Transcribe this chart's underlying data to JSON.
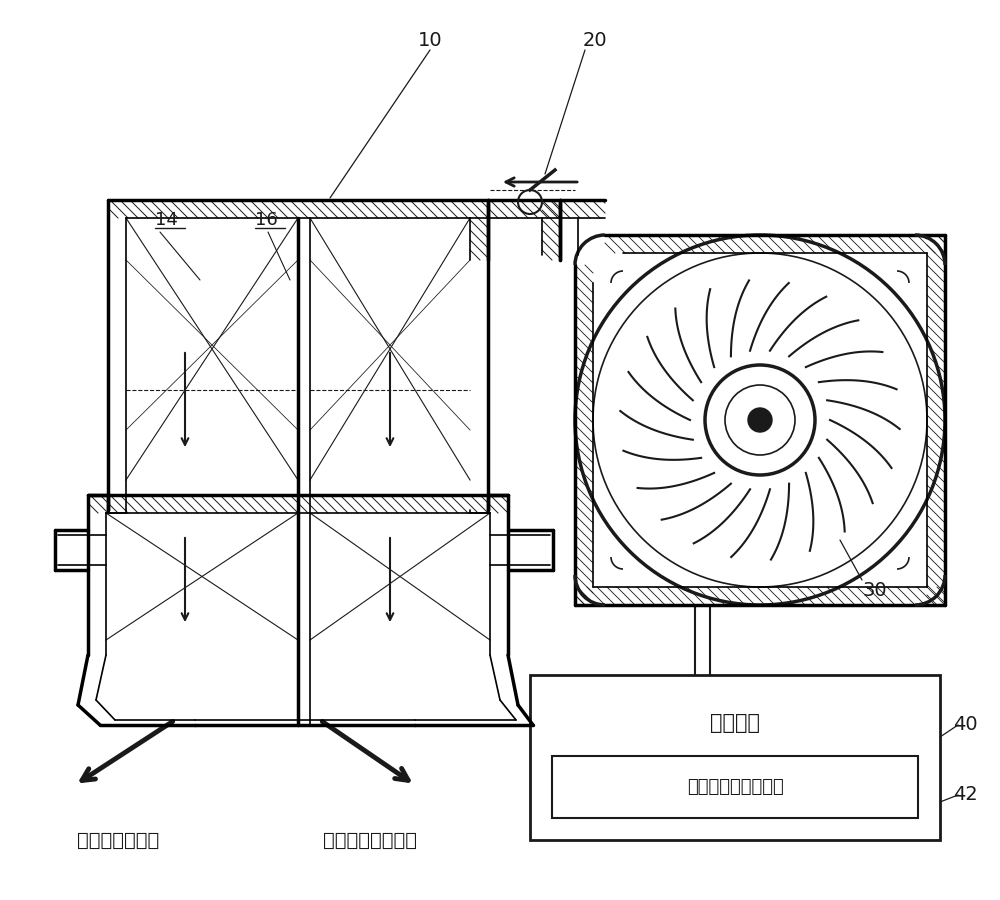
{
  "bg_color": "#ffffff",
  "line_color": "#1a1a1a",
  "label_14": "14",
  "label_16": "16",
  "label_10": "10",
  "label_20": "20",
  "label_30": "30",
  "label_40": "40",
  "label_42": "42",
  "text_driver": "驾驶员座位区域",
  "text_passenger": "前排乘客座位区域",
  "text_control": "控制单元",
  "text_mode": "最大空气量控制模式",
  "font_size_chinese": 13,
  "font_size_ref": 12
}
